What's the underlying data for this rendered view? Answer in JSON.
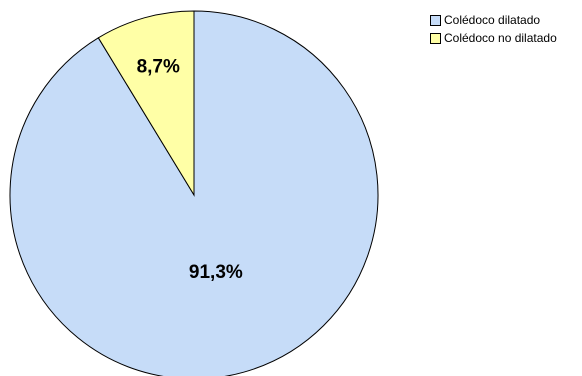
{
  "chart_data": {
    "type": "pie",
    "labels": [
      "Colédoco dilatado",
      "Colédoco no dilatado"
    ],
    "values": [
      91.3,
      8.7
    ],
    "data_labels": [
      "91,3%",
      "8,7%"
    ],
    "colors": [
      "#c6dcf8",
      "#ffffa6"
    ],
    "legend_position": "top-right",
    "start_angle": "12 o'clock",
    "direction": "clockwise"
  }
}
